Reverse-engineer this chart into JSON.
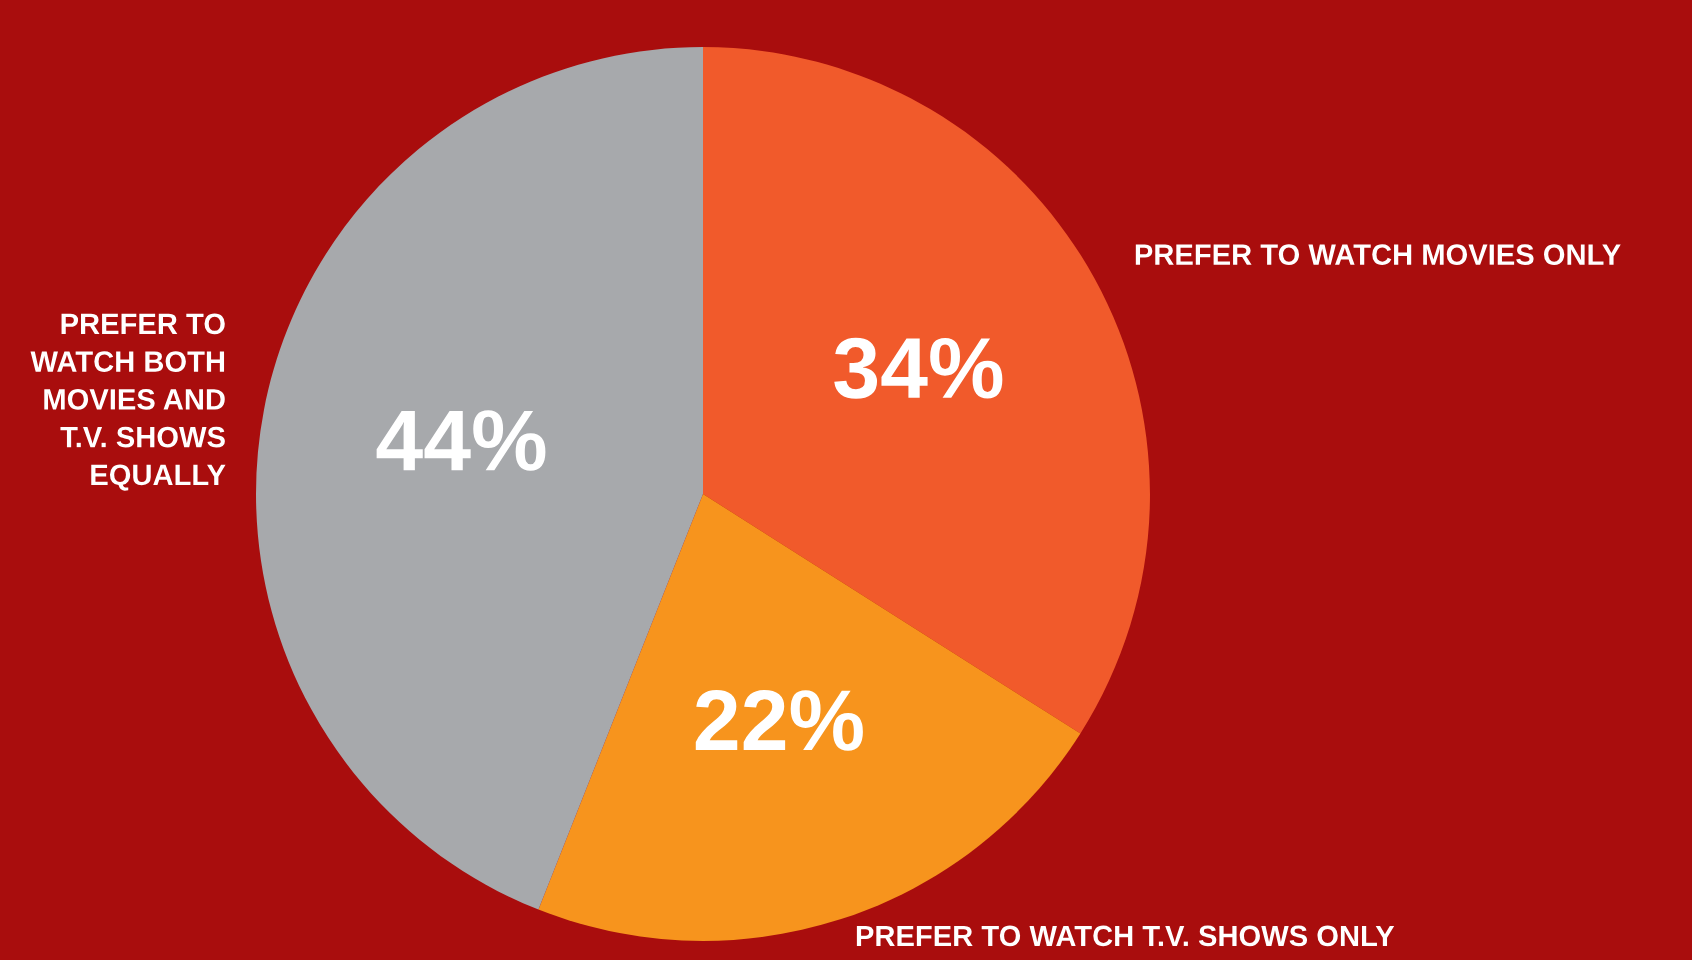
{
  "chart_data": {
    "type": "pie",
    "categories": [
      "PREFER TO WATCH MOVIES ONLY",
      "PREFER TO WATCH T.V. SHOWS ONLY",
      "PREFER TO\nWATCH BOTH\nMOVIES AND\nT.V. SHOWS\nEQUALLY"
    ],
    "values": [
      34,
      22,
      44
    ],
    "colors": [
      "#f15a2b",
      "#f7941d",
      "#a7a9ac"
    ],
    "value_labels": [
      "34%",
      "22%",
      "44%"
    ],
    "legend": false
  }
}
